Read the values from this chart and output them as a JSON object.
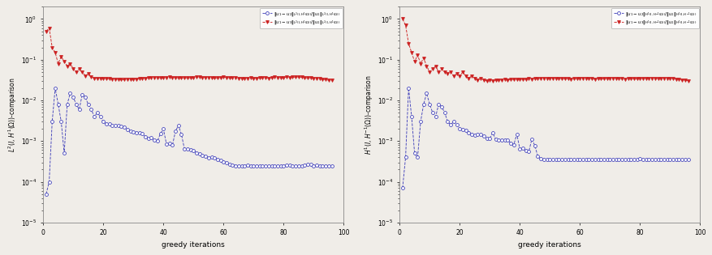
{
  "xlabel": "greedy iterations",
  "ylabel_left": "$L^2(I,\\,H^1(\\Omega))$-comparison",
  "ylabel_right": "$H^1(I,\\,H^{-1}(\\Omega))$-comparison",
  "legend_blue_left": "$\\|u_1 - u_2\\|_{L^2(I,H^1(\\Omega))}/\\|u_1\\|_{L^2(I,H^1(\\Omega))}$",
  "legend_red_left": "$\\|u_1 - u_3\\|_{L^2(I,H^1(\\Omega))}/\\|u_1\\|_{L^2(I,H^1(\\Omega))}$",
  "legend_blue_right": "$\\|u_1 - u_2\\|_{H^1(I,H^{-1}(\\Omega))}/\\|u_1\\|_{H^1(I,H^{-1}(\\Omega))}$",
  "legend_red_right": "$\\|u_1 - u_3\\|_{H^1(I,H^{-1}(\\Omega))}/\\|u_1\\|_{H^1(I,H^{-1}(\\Omega))}$",
  "blue_color": "#4444bb",
  "red_color": "#cc2222",
  "xlim": [
    0,
    100
  ],
  "ylim_left": [
    1e-05,
    2.0
  ],
  "ylim_right": [
    1e-05,
    2.0
  ],
  "xticks": [
    0,
    20,
    40,
    60,
    80,
    100
  ],
  "background": "#f0ede8",
  "figsize": [
    8.78,
    3.15
  ],
  "dpi": 100
}
